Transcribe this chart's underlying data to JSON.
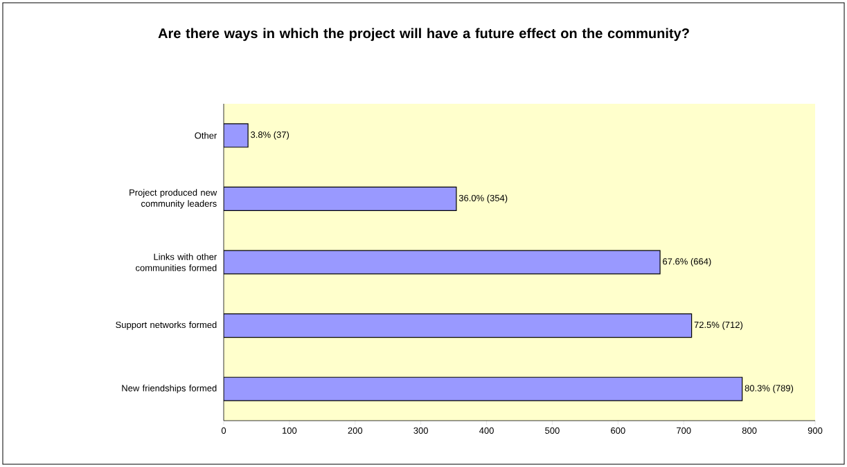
{
  "chart_data": {
    "type": "bar",
    "orientation": "horizontal",
    "title": "Are there ways in which the project will have a future effect on the community?",
    "categories": [
      "Other",
      "Project produced new community leaders",
      "Links with other communities formed",
      "Support networks formed",
      "New friendships formed"
    ],
    "values": [
      37,
      354,
      664,
      712,
      789
    ],
    "value_labels": [
      "3.8% (37)",
      "36.0% (354)",
      "67.6% (664)",
      "72.5% (712)",
      "80.3% (789)"
    ],
    "color": "#9999ff",
    "xlim": [
      0,
      900
    ],
    "xticks": [
      0,
      100,
      200,
      300,
      400,
      500,
      600,
      700,
      800,
      900
    ]
  }
}
